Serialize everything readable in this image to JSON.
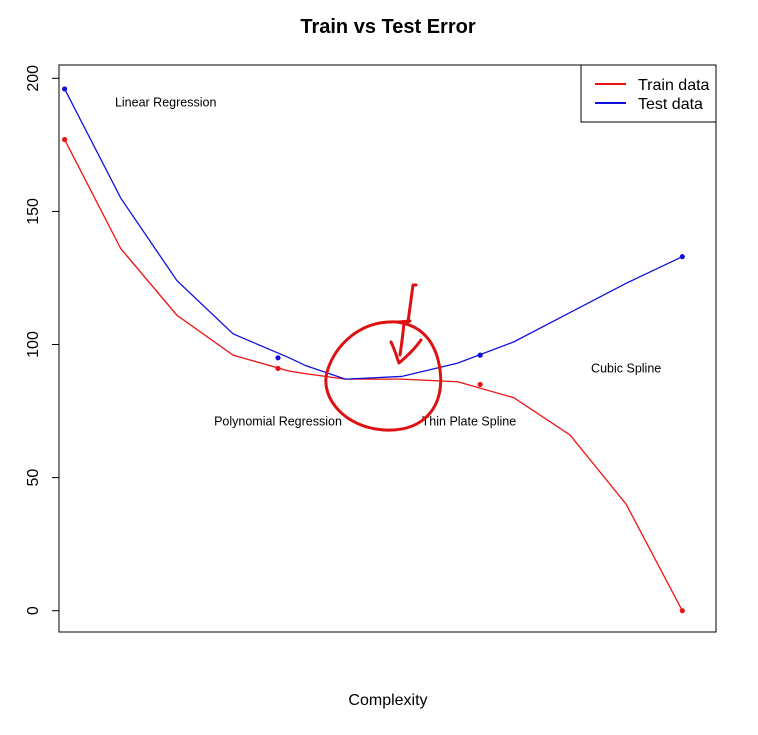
{
  "chart_data": {
    "type": "line",
    "title": "Train vs Test Error",
    "xlabel": "Complexity",
    "ylabel": "",
    "ylim": [
      -8,
      205
    ],
    "xlim": [
      0.9,
      12.6
    ],
    "yticks": [
      0,
      50,
      100,
      150,
      200
    ],
    "grid": false,
    "legend_position": "top-right",
    "series": [
      {
        "name": "Train data",
        "color": "#ee1111",
        "x": [
          1,
          2,
          3,
          4,
          5,
          5.3,
          6,
          7,
          8,
          9,
          10,
          11,
          12
        ],
        "y": [
          177,
          136,
          111,
          96,
          90,
          89,
          87,
          87,
          86,
          80,
          66,
          40,
          0
        ],
        "points": [
          [
            1,
            177
          ],
          [
            4.8,
            91
          ],
          [
            8.4,
            85
          ],
          [
            12,
            0
          ]
        ]
      },
      {
        "name": "Test data",
        "color": "#1010dd",
        "x": [
          1,
          2,
          3,
          4,
          5,
          5.3,
          6,
          7,
          8,
          9,
          10,
          11,
          12
        ],
        "y": [
          196,
          155,
          124,
          104,
          95,
          92,
          87,
          88,
          93,
          101,
          112,
          123,
          133
        ],
        "points": [
          [
            1,
            196
          ],
          [
            4.8,
            95
          ],
          [
            8.4,
            96
          ],
          [
            12,
            133
          ]
        ]
      }
    ],
    "annotations": [
      {
        "text": "Linear Regression",
        "x": 2.8,
        "y": 191
      },
      {
        "text": "Polynomial Regression",
        "x": 4.8,
        "y": 71
      },
      {
        "text": "Thin Plate Spline",
        "x": 8.2,
        "y": 71
      },
      {
        "text": "Cubic Spline",
        "x": 11.0,
        "y": 91
      }
    ]
  }
}
